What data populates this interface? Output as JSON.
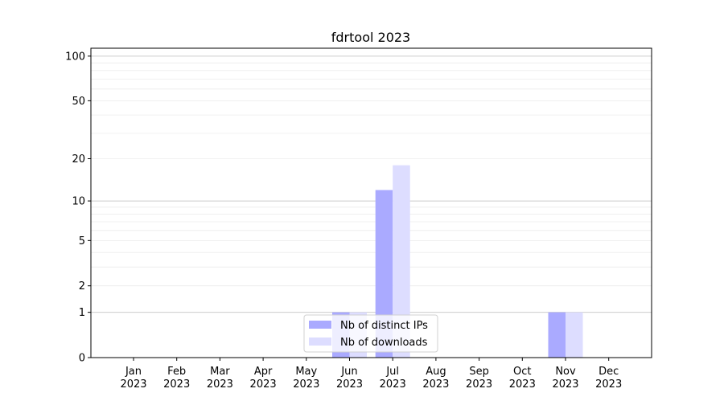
{
  "chart_data": {
    "type": "bar",
    "title": "fdrtool 2023",
    "xlabel": "",
    "ylabel": "",
    "y_scale": "symlog (log of 1+y)",
    "ylim": [
      0,
      113
    ],
    "y_ticks": [
      0,
      1,
      2,
      5,
      10,
      20,
      50,
      100
    ],
    "grid": "horizontal major and minor",
    "legend_position": "lower center",
    "categories": [
      "Jan\n2023",
      "Feb\n2023",
      "Mar\n2023",
      "Apr\n2023",
      "May\n2023",
      "Jun\n2023",
      "Jul\n2023",
      "Aug\n2023",
      "Sep\n2023",
      "Oct\n2023",
      "Nov\n2023",
      "Dec\n2023"
    ],
    "series": [
      {
        "name": "Nb of distinct IPs",
        "color": "#aaaaff",
        "values": [
          0,
          0,
          0,
          0,
          0,
          1,
          12,
          0,
          0,
          0,
          1,
          0
        ]
      },
      {
        "name": "Nb of downloads",
        "color": "#ddddff",
        "values": [
          0,
          0,
          0,
          0,
          0,
          1,
          18,
          0,
          0,
          0,
          1,
          0
        ]
      }
    ]
  }
}
